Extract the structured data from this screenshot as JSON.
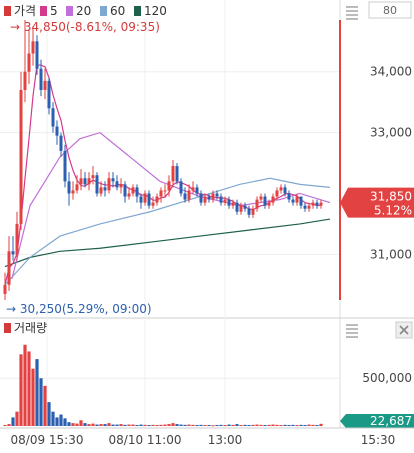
{
  "chart_data": [
    {
      "type": "candlestick",
      "title": "가격",
      "legend": [
        {
          "label": "5",
          "color": "#d43a8c"
        },
        {
          "label": "20",
          "color": "#c070d8"
        },
        {
          "label": "60",
          "color": "#7fa8d0"
        },
        {
          "label": "120",
          "color": "#1f5f4e"
        }
      ],
      "high_note": "→ 34,850(-8.61%, 09:35)",
      "low_note": "→ 30,250(5.29%, 09:00)",
      "ylim": [
        30250,
        34850
      ],
      "yticks": [
        {
          "value": 34000,
          "label": "34,000"
        },
        {
          "value": 33000,
          "label": "33,000"
        },
        {
          "value": 31000,
          "label": "31,000"
        }
      ],
      "price_badge": {
        "value": "31,850",
        "change": "5.12%",
        "price": 31850
      },
      "zoom_badge": "80",
      "ma_lines": {
        "ma20_x": [
          12,
          30,
          60,
          80,
          100,
          130,
          160,
          200,
          240,
          280,
          300,
          320,
          330
        ],
        "ma20_y": [
          30600,
          31800,
          32600,
          32900,
          33000,
          32600,
          32200,
          31950,
          31800,
          31900,
          32000,
          31900,
          31850
        ],
        "ma60_x": [
          5,
          30,
          60,
          100,
          150,
          200,
          240,
          270,
          300,
          330
        ],
        "ma60_y": [
          30500,
          30950,
          31300,
          31500,
          31700,
          31950,
          32150,
          32250,
          32150,
          32100
        ],
        "ma120_x": [
          5,
          30,
          60,
          100,
          150,
          200,
          250,
          300,
          330
        ],
        "ma120_y": [
          30800,
          30950,
          31050,
          31100,
          31200,
          31300,
          31400,
          31500,
          31580
        ]
      },
      "candles": {
        "x": [
          5,
          9,
          13,
          17,
          21,
          25,
          29,
          33,
          37,
          41,
          45,
          49,
          53,
          57,
          61,
          65,
          69,
          73,
          77,
          81,
          85,
          89,
          93,
          97,
          101,
          105,
          109,
          113,
          117,
          121,
          125,
          129,
          133,
          137,
          141,
          145,
          149,
          153,
          157,
          161,
          165,
          169,
          173,
          177,
          181,
          185,
          189,
          193,
          197,
          201,
          205,
          209,
          213,
          217,
          221,
          225,
          229,
          233,
          237,
          241,
          245,
          249,
          253,
          257,
          261,
          265,
          269,
          273,
          277,
          281,
          285,
          289,
          293,
          297,
          301,
          305,
          309,
          313,
          317,
          321
        ],
        "open": [
          30350,
          30500,
          31050,
          31000,
          31500,
          33700,
          34000,
          34300,
          34500,
          34050,
          33700,
          33850,
          33400,
          33100,
          32950,
          32700,
          32200,
          32000,
          32050,
          32150,
          32250,
          32150,
          32250,
          32300,
          32000,
          32100,
          32050,
          32250,
          32200,
          32100,
          32150,
          31950,
          32000,
          32100,
          31950,
          31850,
          32000,
          31800,
          31850,
          31950,
          32050,
          32050,
          32200,
          32450,
          32200,
          32000,
          31900,
          32050,
          32100,
          32000,
          31850,
          31950,
          31900,
          32000,
          31950,
          31850,
          31900,
          31800,
          31850,
          31700,
          31800,
          31750,
          31650,
          31750,
          31900,
          31950,
          31800,
          31850,
          31950,
          32050,
          32100,
          32000,
          31900,
          31850,
          31950,
          31800,
          31750,
          31800,
          31850,
          31800
        ],
        "close": [
          30500,
          31050,
          31000,
          31500,
          33700,
          34000,
          34300,
          34500,
          34050,
          33700,
          33850,
          33400,
          33100,
          32950,
          32700,
          32200,
          32000,
          32050,
          32150,
          32250,
          32150,
          32250,
          32300,
          32000,
          32100,
          32050,
          32250,
          32200,
          32100,
          32150,
          31950,
          32000,
          32100,
          31950,
          31850,
          32000,
          31800,
          31850,
          31950,
          32050,
          32050,
          32200,
          32450,
          32200,
          32000,
          31900,
          32050,
          32100,
          32000,
          31850,
          31950,
          31900,
          32000,
          31950,
          31850,
          31900,
          31800,
          31850,
          31700,
          31800,
          31750,
          31650,
          31750,
          31900,
          31950,
          31800,
          31850,
          31950,
          32050,
          32100,
          32000,
          31900,
          31850,
          31950,
          31800,
          31750,
          31800,
          31850,
          31800,
          31850
        ],
        "high": [
          30700,
          31300,
          31300,
          31700,
          34000,
          34850,
          34700,
          34750,
          34600,
          34200,
          34050,
          33900,
          33500,
          33200,
          33000,
          32800,
          32350,
          32200,
          32300,
          32400,
          32350,
          32350,
          32450,
          32350,
          32200,
          32200,
          32350,
          32350,
          32300,
          32250,
          32200,
          32100,
          32150,
          32150,
          32000,
          32050,
          32050,
          31950,
          32000,
          32100,
          32150,
          32300,
          32550,
          32500,
          32250,
          32100,
          32150,
          32200,
          32150,
          32050,
          32000,
          32000,
          32050,
          32050,
          32000,
          31950,
          31950,
          31900,
          31900,
          31850,
          31850,
          31800,
          31800,
          31950,
          32000,
          32000,
          31900,
          32000,
          32100,
          32150,
          32150,
          32050,
          31950,
          32000,
          31950,
          31850,
          31850,
          31900,
          31900,
          31900
        ],
        "low": [
          30250,
          30400,
          30900,
          30900,
          31400,
          33500,
          33800,
          34100,
          33950,
          33600,
          33550,
          33300,
          33000,
          32800,
          32600,
          32100,
          31800,
          31900,
          32000,
          32050,
          32100,
          32050,
          32150,
          31950,
          31950,
          31950,
          32000,
          32100,
          32050,
          32000,
          31850,
          31900,
          31950,
          31850,
          31750,
          31800,
          31750,
          31750,
          31800,
          31850,
          31950,
          31950,
          32100,
          32150,
          31950,
          31850,
          31850,
          32000,
          31950,
          31800,
          31800,
          31850,
          31850,
          31900,
          31800,
          31800,
          31750,
          31750,
          31650,
          31650,
          31700,
          31600,
          31600,
          31700,
          31850,
          31750,
          31750,
          31800,
          31900,
          32000,
          31950,
          31850,
          31800,
          31800,
          31750,
          31700,
          31700,
          31750,
          31750,
          31750
        ]
      },
      "xticks": [
        {
          "x": 47,
          "label": "08/09 15:30"
        },
        {
          "x": 145,
          "label": "08/10 11:00"
        },
        {
          "x": 225,
          "label": "13:00"
        },
        {
          "x": 378,
          "label": "15:30"
        }
      ]
    },
    {
      "type": "bar",
      "title": "거래량",
      "ylim": [
        0,
        900000
      ],
      "yticks": [
        {
          "value": 500000,
          "label": "500,000"
        }
      ],
      "last_volume_badge": "22,687",
      "volume": [
        10000,
        20000,
        90000,
        150000,
        750000,
        850000,
        780000,
        600000,
        700000,
        500000,
        420000,
        250000,
        150000,
        90000,
        120000,
        80000,
        40000,
        30000,
        25000,
        60000,
        30000,
        20000,
        25000,
        15000,
        20000,
        20000,
        30000,
        15000,
        15000,
        20000,
        12000,
        15000,
        15000,
        10000,
        15000,
        12000,
        10000,
        12000,
        10000,
        12000,
        15000,
        20000,
        30000,
        20000,
        15000,
        12000,
        15000,
        12000,
        10000,
        12000,
        10000,
        10000,
        8000,
        10000,
        12000,
        10000,
        15000,
        12000,
        20000,
        10000,
        12000,
        10000,
        12000,
        15000,
        12000,
        10000,
        12000,
        15000,
        12000,
        10000,
        12000,
        10000,
        12000,
        10000,
        12000,
        10000,
        15000,
        12000,
        10000,
        22687
      ]
    }
  ]
}
